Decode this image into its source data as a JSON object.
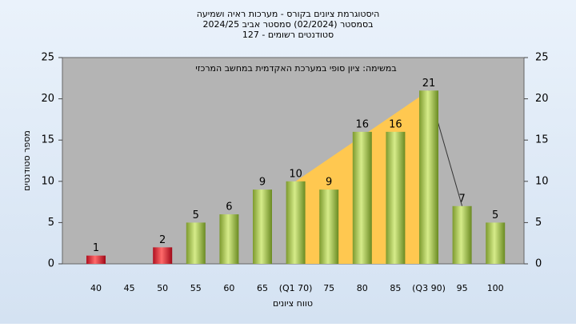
{
  "chart_data": {
    "type": "bar",
    "title": "היסטוגרמת ציונים בקורס - מערכות ראיה ושמיעה",
    "subtitle": [
      "בסמסטר  (02/2024)  סמסטר אביב 2024/25",
      "סטודנטים רשומים - 127"
    ],
    "annotation": "במשימה: ציון סופי במערכת האקדמית במחשב המרכזי",
    "y_label": "מספר סטודנטים",
    "x_label": "טווח ציונים",
    "categories": [
      "40",
      "45",
      "50",
      "55",
      "60",
      "65",
      "(Q1 70)",
      "75",
      "80",
      "85",
      "(Q3 90)",
      "95",
      "100"
    ],
    "values": [
      1,
      null,
      2,
      5,
      6,
      9,
      10,
      9,
      16,
      16,
      21,
      7,
      5
    ],
    "colors": [
      "red",
      null,
      "red",
      "green",
      "green",
      "green",
      "green",
      "green",
      "green",
      "green",
      "green",
      "green",
      "green"
    ],
    "ylim": [
      0,
      25
    ],
    "yticks": [
      0,
      5,
      10,
      15,
      20,
      25
    ],
    "y2lim": [
      0,
      25
    ],
    "y2ticks": [
      0,
      5,
      10,
      15,
      20,
      25
    ],
    "grid": false
  }
}
